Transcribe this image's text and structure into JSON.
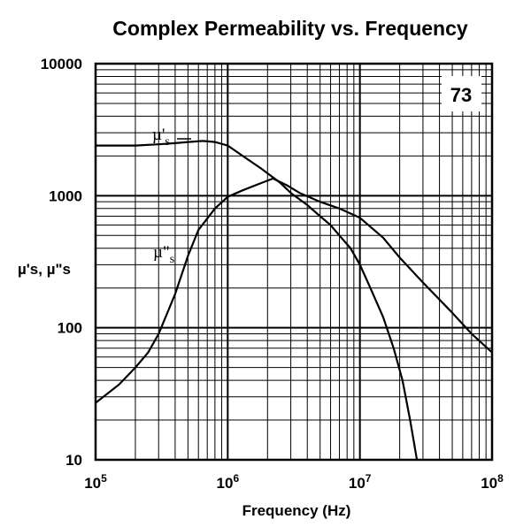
{
  "chart_data": {
    "type": "line",
    "title": "Complex Permeability vs. Frequency",
    "xlabel": "Frequency (Hz)",
    "ylabel": "µ's, µ\"s",
    "x_scale": "log",
    "y_scale": "log",
    "xlim": [
      100000,
      100000000
    ],
    "ylim": [
      10,
      10000
    ],
    "x_ticks": [
      {
        "value": 100000,
        "mantissa": "10",
        "exp": "5"
      },
      {
        "value": 1000000,
        "mantissa": "10",
        "exp": "6"
      },
      {
        "value": 10000000,
        "mantissa": "10",
        "exp": "7"
      },
      {
        "value": 100000000,
        "mantissa": "10",
        "exp": "8"
      }
    ],
    "y_ticks": [
      {
        "value": 10,
        "label": "10"
      },
      {
        "value": 100,
        "label": "100"
      },
      {
        "value": 1000,
        "label": "1000"
      },
      {
        "value": 10000,
        "label": "10000"
      }
    ],
    "grid": true,
    "badge": "73",
    "series": [
      {
        "name": "µ's",
        "label_main": "µ'",
        "label_sub": "s",
        "points": [
          [
            100000,
            2400
          ],
          [
            200000,
            2400
          ],
          [
            300000,
            2450
          ],
          [
            400000,
            2500
          ],
          [
            500000,
            2550
          ],
          [
            650000,
            2600
          ],
          [
            800000,
            2550
          ],
          [
            1000000,
            2400
          ],
          [
            1300000,
            2000
          ],
          [
            1800000,
            1600
          ],
          [
            2500000,
            1250
          ],
          [
            3000000,
            1050
          ],
          [
            4000000,
            850
          ],
          [
            5000000,
            700
          ],
          [
            6000000,
            600
          ],
          [
            7000000,
            500
          ],
          [
            8500000,
            400
          ],
          [
            10000000,
            300
          ],
          [
            12000000,
            200
          ],
          [
            15000000,
            120
          ],
          [
            18000000,
            70
          ],
          [
            21000000,
            40
          ],
          [
            24000000,
            20
          ],
          [
            27000000,
            10
          ]
        ]
      },
      {
        "name": "µ\"s",
        "label_main": "µ\"",
        "label_sub": "s",
        "points": [
          [
            100000,
            27
          ],
          [
            150000,
            37
          ],
          [
            200000,
            50
          ],
          [
            250000,
            65
          ],
          [
            300000,
            90
          ],
          [
            400000,
            180
          ],
          [
            500000,
            350
          ],
          [
            600000,
            550
          ],
          [
            800000,
            800
          ],
          [
            1000000,
            980
          ],
          [
            1300000,
            1100
          ],
          [
            1800000,
            1250
          ],
          [
            2200000,
            1350
          ],
          [
            2800000,
            1200
          ],
          [
            3500000,
            1050
          ],
          [
            5000000,
            900
          ],
          [
            7000000,
            800
          ],
          [
            10000000,
            680
          ],
          [
            15000000,
            480
          ],
          [
            20000000,
            340
          ],
          [
            30000000,
            220
          ],
          [
            50000000,
            130
          ],
          [
            70000000,
            90
          ],
          [
            100000000,
            65
          ]
        ]
      }
    ]
  }
}
